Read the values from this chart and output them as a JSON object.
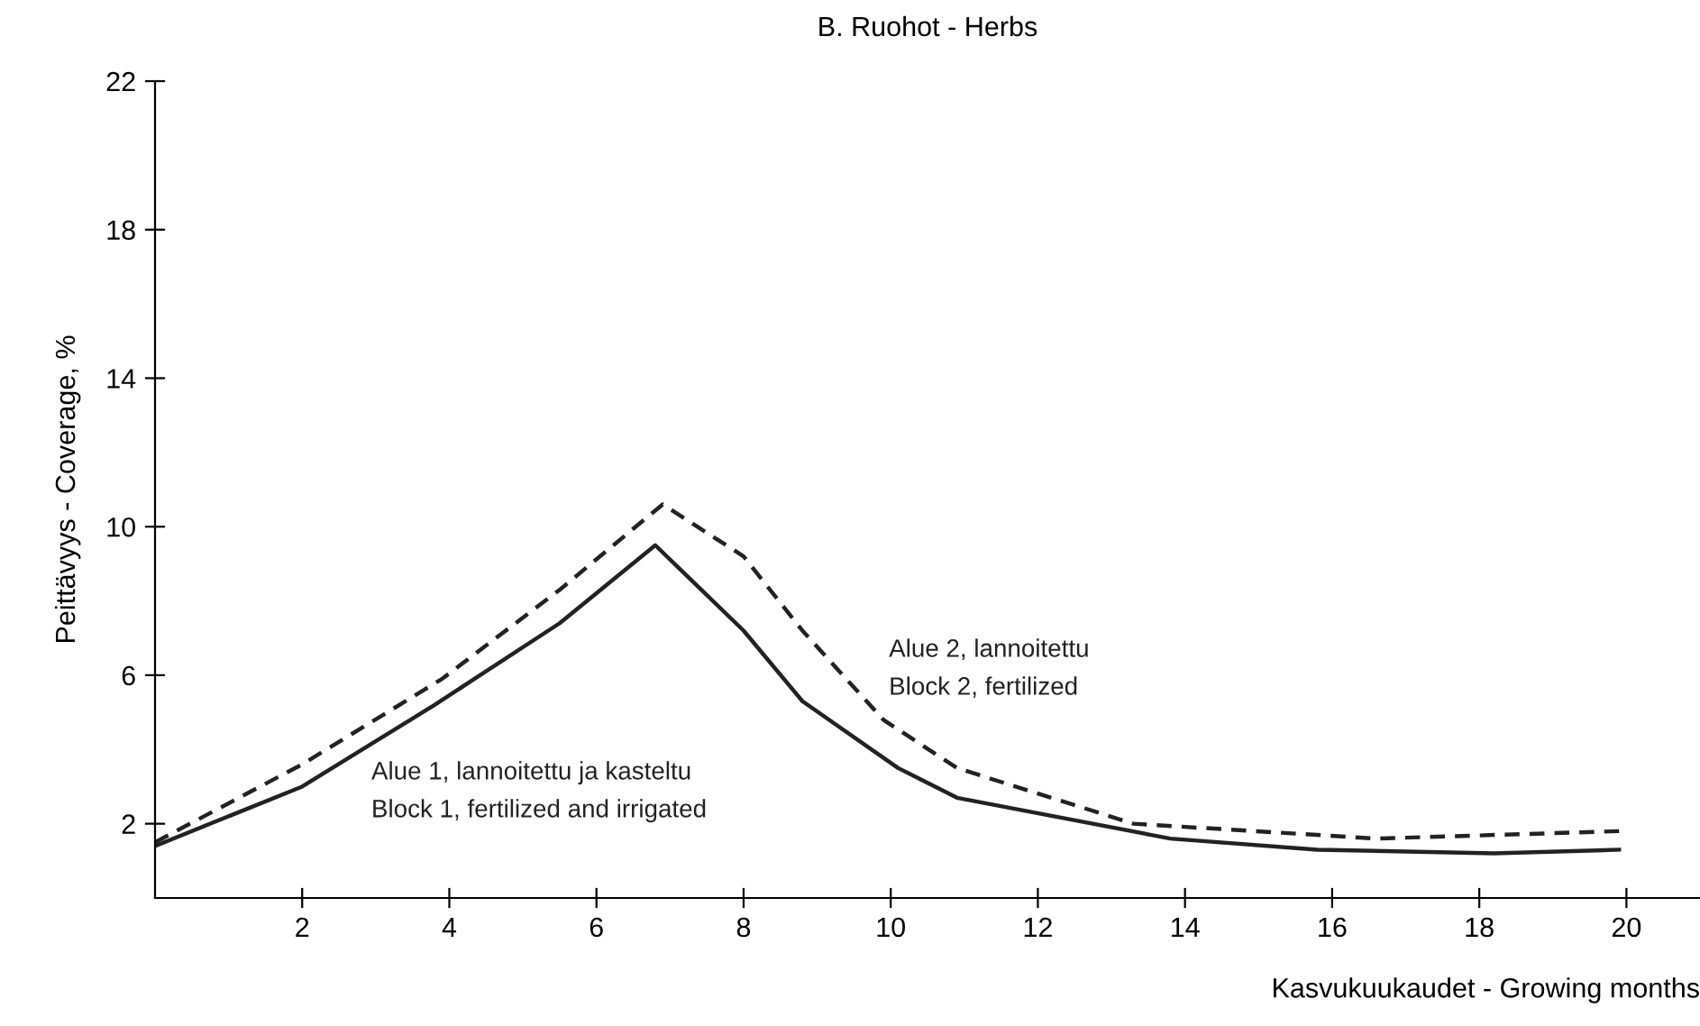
{
  "chart_data": {
    "type": "line",
    "title": "B. Ruohot - Herbs",
    "xlabel": "Kasvukuukaudet - Growing months",
    "ylabel": "Peittävyys - Coverage, %",
    "xlim": [
      0,
      21
    ],
    "xticks": [
      2,
      4,
      6,
      8,
      10,
      12,
      14,
      16,
      18,
      20
    ],
    "ylim": [
      0,
      22
    ],
    "yticks": [
      2,
      6,
      10,
      14,
      18,
      22
    ],
    "grid": false,
    "legend": false,
    "series": [
      {
        "name": "Alue 1, lannoitettu ja kasteltu\nBlock 1, fertilized and irrigated",
        "color": "#222222",
        "line_style": "solid",
        "x": [
          0,
          2,
          3.8,
          5.5,
          6.8,
          8,
          8.8,
          10.1,
          10.9,
          13.8,
          15.8,
          18.2,
          19.9
        ],
        "values": [
          1.4,
          3.0,
          5.2,
          7.4,
          9.5,
          7.2,
          5.3,
          3.5,
          2.7,
          1.6,
          1.3,
          1.2,
          1.3
        ]
      },
      {
        "name": "Alue 2, lannoitettu\nBlock 2, fertilized",
        "color": "#222222",
        "line_style": "dashed",
        "x": [
          0,
          2,
          3.9,
          5.5,
          6.9,
          8,
          8.8,
          9.9,
          10.9,
          13.3,
          16.6,
          19.9
        ],
        "values": [
          1.5,
          3.6,
          5.9,
          8.3,
          10.6,
          9.2,
          7.2,
          4.8,
          3.5,
          2.0,
          1.6,
          1.8
        ]
      }
    ]
  }
}
